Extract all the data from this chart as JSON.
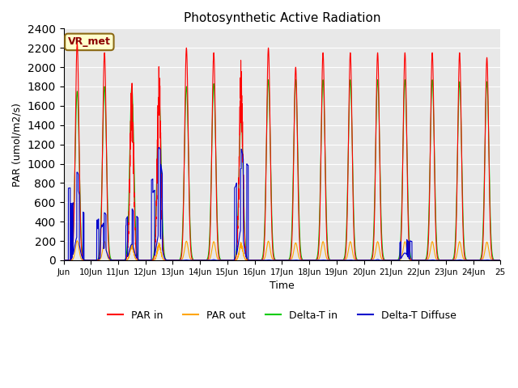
{
  "title": "Photosynthetic Active Radiation",
  "ylabel": "PAR (umol/m2/s)",
  "xlabel": "Time",
  "ylim": [
    0,
    2400
  ],
  "background_color": "#e8e8e8",
  "annotation_text": "VR_met",
  "legend_labels": [
    "PAR in",
    "PAR out",
    "Delta-T in",
    "Delta-T Diffuse"
  ],
  "legend_colors": [
    "#ff0000",
    "#ffa500",
    "#00cc00",
    "#0000cc"
  ],
  "x_tick_labels": [
    "Jun",
    "10Jun",
    "11Jun",
    "12Jun",
    "13Jun",
    "14Jun",
    "15Jun",
    "16Jun",
    "17Jun",
    "18Jun",
    "19Jun",
    "20Jun",
    "21Jun",
    "22Jun",
    "23Jun",
    "24Jun",
    "25"
  ],
  "yticks": [
    0,
    200,
    400,
    600,
    800,
    1000,
    1200,
    1400,
    1600,
    1800,
    2000,
    2200,
    2400
  ]
}
